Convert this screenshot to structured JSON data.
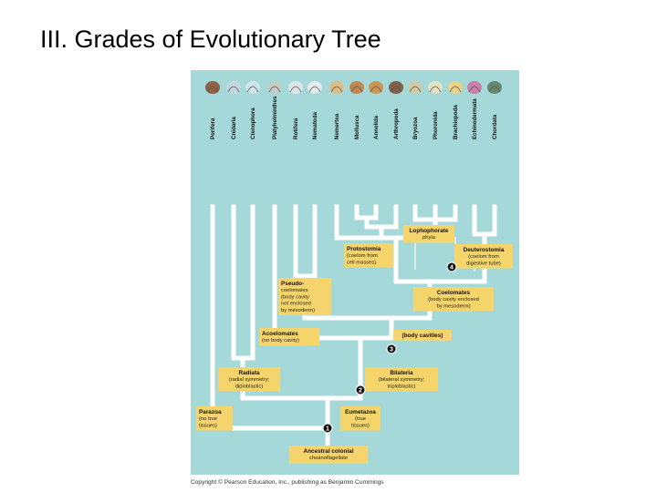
{
  "slide": {
    "title": "III.  Grades of Evolutionary Tree"
  },
  "colors": {
    "background": "#a5d8d8",
    "branch": "#ffffff",
    "label_box": "#f5d56b",
    "node_circle": "#111111"
  },
  "tree": {
    "phyla": [
      "Porifera",
      "Cnidaria",
      "Ctenophora",
      "Platyhelminthes",
      "Rotifera",
      "Nematoda",
      "Nemertea",
      "Mollusca",
      "Annelida",
      "Arthropoda",
      "Bryozoa",
      "Phoronida",
      "Brachiopoda",
      "Echinodermata",
      "Chordata"
    ],
    "labels": {
      "lophophorate": [
        "Lophophorate",
        "phyla"
      ],
      "protostomia": [
        "Protostomia",
        "(coelom from",
        "cell masses)"
      ],
      "deuterostomia": [
        "Deuterostomia",
        "(coelom from",
        "digestive tube)"
      ],
      "pseudocoelomates": [
        "Pseudo-",
        "coelomates",
        "(body cavity",
        "not enclosed",
        "by mesoderm)"
      ],
      "coelomates": [
        "Coelomates",
        "(body cavity enclosed",
        "by mesoderm)"
      ],
      "acoelomates": [
        "Acoelomates",
        "(no body cavity)"
      ],
      "body_cavities": [
        "(body cavities)"
      ],
      "radiata": [
        "Radiata",
        "(radial symmetry;",
        "diploblastic)"
      ],
      "bilateria": [
        "Bilateria",
        "(bilateral symmetry;",
        "triploblastic)"
      ],
      "parazoa": [
        "Parazoa",
        "(no true",
        "tissues)"
      ],
      "eumetazoa": [
        "Eumetazoa",
        "(true",
        "tissues)"
      ],
      "ancestor": [
        "Ancestral colonial",
        "choanoflagellate"
      ]
    },
    "nodes": [
      "1",
      "2",
      "3",
      "4"
    ]
  },
  "copyright": "Copyright © Pearson Education, Inc., publishing as Benjamin Cummings"
}
